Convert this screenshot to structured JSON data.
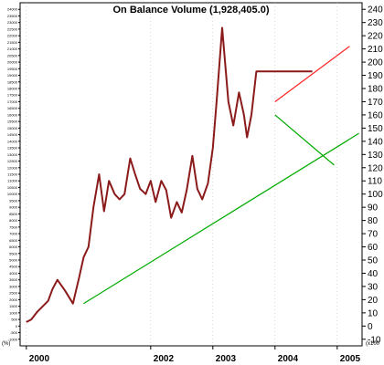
{
  "chart_data": {
    "type": "line",
    "title": "On Balance Volume (1,928,405.0)",
    "x_tick_labels": [
      "2000",
      "2002",
      "2003",
      "2004",
      "2005"
    ],
    "x_tick_years": [
      2000,
      2002,
      2003,
      2004,
      2005
    ],
    "xlim": [
      1999.9,
      2005.4
    ],
    "y_right_ticks": [
      -10,
      0,
      10,
      20,
      30,
      40,
      50,
      60,
      70,
      80,
      90,
      100,
      110,
      120,
      130,
      140,
      150,
      160,
      170,
      180,
      190,
      200,
      210,
      220,
      230,
      240
    ],
    "ylim": [
      -15,
      245
    ],
    "y_unit_label": "(x100",
    "y_left_unit_label": "(%)",
    "left_tick_step": 5,
    "grid": "vertical dotted at year ticks",
    "series": [
      {
        "color": "#8b1a1a",
        "x": [
          2000.0,
          2000.08,
          2000.18,
          2000.35,
          2000.42,
          2000.5,
          2000.62,
          2000.75,
          2000.85,
          2000.92,
          2001.0,
          2001.08,
          2001.17,
          2001.25,
          2001.33,
          2001.42,
          2001.5,
          2001.58,
          2001.67,
          2001.75,
          2001.83,
          2001.92,
          2002.0,
          2002.08,
          2002.17,
          2002.25,
          2002.33,
          2002.42,
          2002.5,
          2002.58,
          2002.67,
          2002.75,
          2002.83,
          2002.92,
          2003.0,
          2003.06,
          2003.15,
          2003.25,
          2003.33,
          2003.42,
          2003.5,
          2003.55,
          2003.62,
          2003.7,
          2003.78,
          2003.88,
          2003.95,
          2004.02,
          2004.08,
          2004.15,
          2004.22,
          2004.32,
          2004.42,
          2004.52,
          2004.6
        ],
        "values": [
          3,
          5,
          11,
          19,
          28,
          35,
          27,
          17,
          37,
          52,
          60,
          90,
          115,
          87,
          110,
          100,
          96,
          100,
          127,
          115,
          104,
          100,
          110,
          94,
          110,
          103,
          82,
          94,
          86,
          103,
          129,
          104,
          96,
          108,
          135,
          170,
          226,
          170,
          152,
          177,
          160,
          143,
          160,
          193,
          193,
          193,
          193,
          193,
          193,
          193,
          193,
          193,
          193,
          193,
          193
        ]
      }
    ],
    "trendlines": [
      {
        "color": "#00aa00",
        "points": [
          [
            2000.92,
            17
          ],
          [
            2005.35,
            146
          ]
        ]
      },
      {
        "color": "#00aa00",
        "points": [
          [
            2004.0,
            160
          ],
          [
            2004.95,
            122
          ]
        ]
      },
      {
        "color": "#ff2222",
        "points": [
          [
            2004.0,
            170
          ],
          [
            2005.2,
            212
          ]
        ]
      }
    ]
  }
}
